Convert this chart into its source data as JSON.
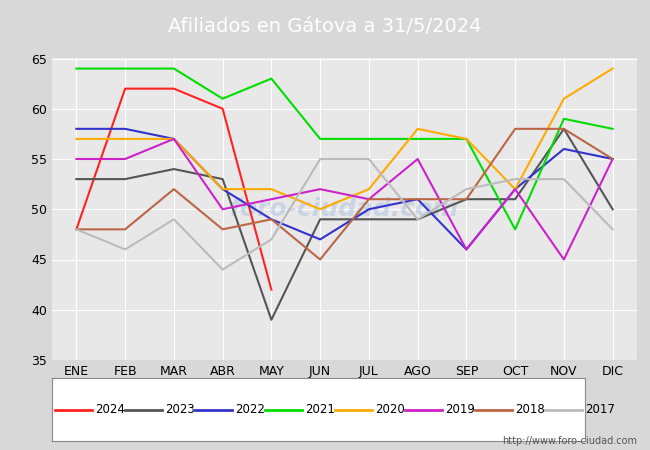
{
  "title": "Afiliados en Gátova a 31/5/2024",
  "title_bg_color": "#4d8fd1",
  "months": [
    "ENE",
    "FEB",
    "MAR",
    "ABR",
    "MAY",
    "JUN",
    "JUL",
    "AGO",
    "SEP",
    "OCT",
    "NOV",
    "DIC"
  ],
  "ylim": [
    35,
    65
  ],
  "yticks": [
    35,
    40,
    45,
    50,
    55,
    60,
    65
  ],
  "series": {
    "2024": {
      "color": "#ff2222",
      "data": [
        48,
        62,
        62,
        60,
        42,
        null,
        null,
        null,
        null,
        null,
        null,
        null
      ]
    },
    "2023": {
      "color": "#555555",
      "data": [
        53,
        53,
        54,
        53,
        39,
        49,
        49,
        49,
        51,
        51,
        58,
        50
      ]
    },
    "2022": {
      "color": "#3333cc",
      "data": [
        58,
        58,
        57,
        52,
        49,
        47,
        50,
        51,
        46,
        52,
        56,
        55
      ]
    },
    "2021": {
      "color": "#00dd00",
      "data": [
        64,
        64,
        64,
        61,
        63,
        57,
        57,
        57,
        57,
        48,
        59,
        58
      ]
    },
    "2020": {
      "color": "#ffaa00",
      "data": [
        57,
        57,
        57,
        52,
        52,
        50,
        52,
        58,
        57,
        52,
        61,
        64
      ]
    },
    "2019": {
      "color": "#cc22cc",
      "data": [
        55,
        55,
        57,
        50,
        51,
        52,
        51,
        55,
        46,
        52,
        45,
        55
      ]
    },
    "2018": {
      "color": "#bb6644",
      "data": [
        48,
        48,
        52,
        48,
        49,
        45,
        51,
        51,
        51,
        58,
        58,
        55
      ]
    },
    "2017": {
      "color": "#bbbbbb",
      "data": [
        48,
        46,
        49,
        44,
        47,
        55,
        55,
        49,
        52,
        53,
        53,
        48
      ]
    }
  },
  "url": "http://www.foro-ciudad.com",
  "bg_color": "#d8d8d8",
  "plot_bg_color": "#e8e8e8",
  "grid_color": "#ffffff"
}
